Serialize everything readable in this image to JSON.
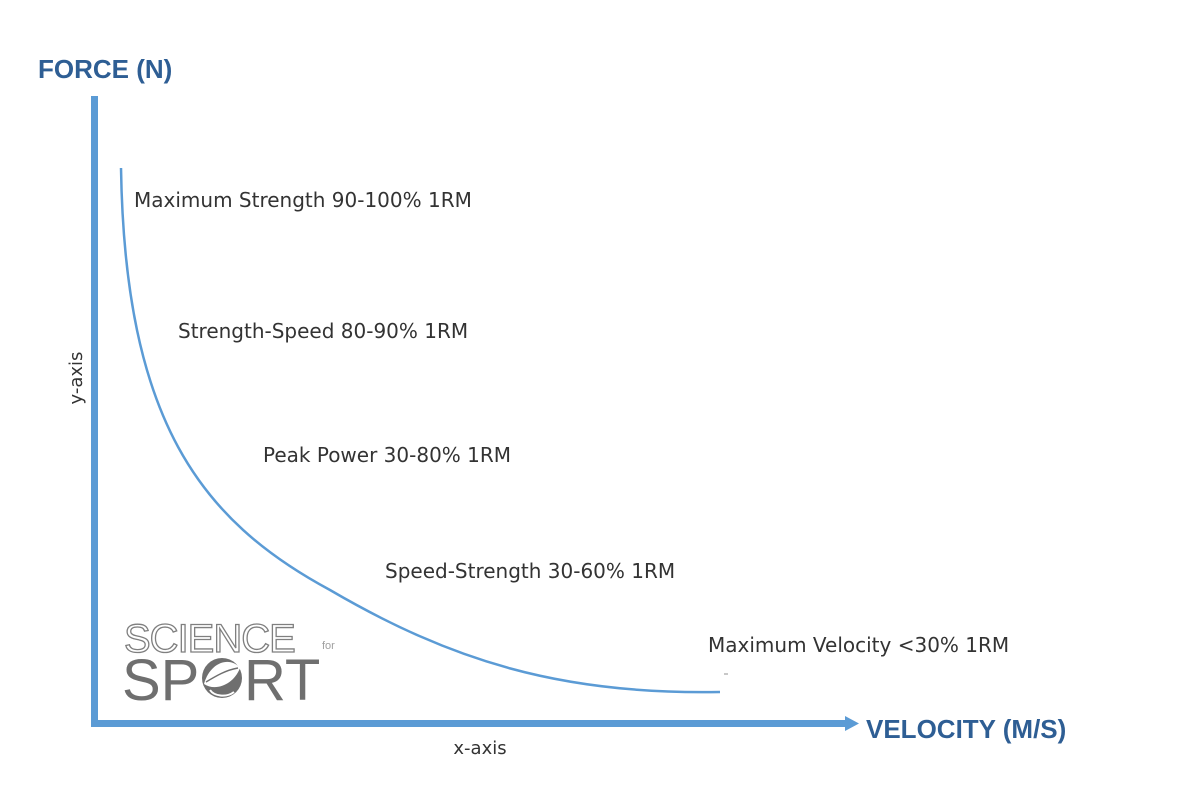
{
  "diagram": {
    "y_axis_title": "FORCE (N)",
    "x_axis_title": "VELOCITY (M/S)",
    "y_axis_label": "y-axis",
    "x_axis_label": "x-axis",
    "colors": {
      "axis": "#5b9bd5",
      "curve": "#5b9bd5",
      "title": "#2e5e94",
      "text": "#333333"
    },
    "zones": [
      {
        "label": "Maximum Strength 90-100% 1RM"
      },
      {
        "label": "Strength-Speed 80-90% 1RM"
      },
      {
        "label": "Peak Power 30-80% 1RM"
      },
      {
        "label": "Speed-Strength 30-60% 1RM"
      },
      {
        "label": "Maximum Velocity <30% 1RM"
      }
    ]
  },
  "logo": {
    "line1": "SCIENCE",
    "line_for": "for",
    "line2_a": "SP",
    "line2_b": "RT",
    "icon": "leaf-ball-icon"
  }
}
